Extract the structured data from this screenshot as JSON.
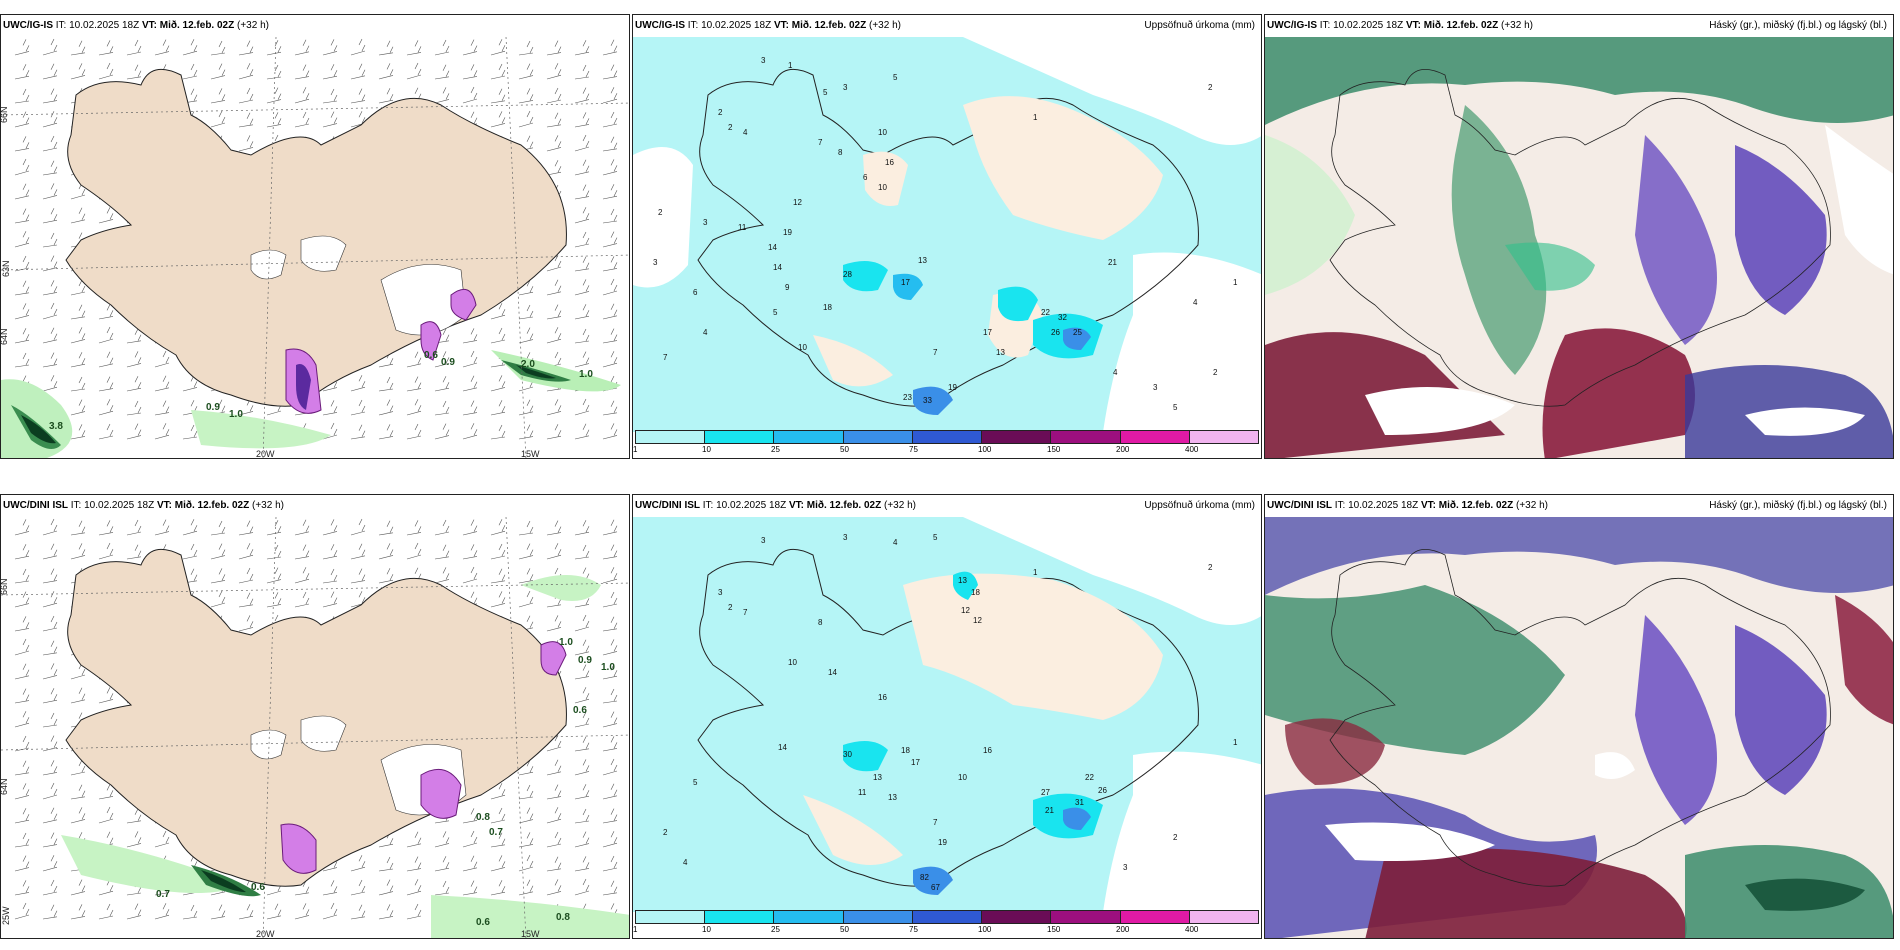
{
  "panels": [
    {
      "id": "p1",
      "model": "UWC/IG-IS",
      "it_label": "IT:",
      "it_value": "10.02.2025 18Z",
      "vt_label": "VT:",
      "vt_value": "Mið. 12.feb. 02Z",
      "lead": "(+32 h)",
      "right_title": "",
      "type": "wind"
    },
    {
      "id": "p2",
      "model": "UWC/IG-IS",
      "it_label": "IT:",
      "it_value": "10.02.2025 18Z",
      "vt_label": "VT:",
      "vt_value": "Mið. 12.feb. 02Z",
      "lead": "(+32 h)",
      "right_title": "Uppsöfnuð úrkoma (mm)",
      "type": "precip"
    },
    {
      "id": "p3",
      "model": "UWC/IG-IS",
      "it_label": "IT:",
      "it_value": "10.02.2025 18Z",
      "vt_label": "VT:",
      "vt_value": "Mið. 12.feb. 02Z",
      "lead": "(+32 h)",
      "right_title": "Háský (gr.), miðský (fj.bl.) og lágský (bl.)",
      "type": "cloud"
    },
    {
      "id": "p4",
      "model": "UWC/DINI ISL",
      "it_label": "IT:",
      "it_value": "10.02.2025 18Z",
      "vt_label": "VT:",
      "vt_value": "Mið. 12.feb. 02Z",
      "lead": "(+32 h)",
      "right_title": "",
      "type": "wind"
    },
    {
      "id": "p5",
      "model": "UWC/DINI ISL",
      "it_label": "IT:",
      "it_value": "10.02.2025 18Z",
      "vt_label": "VT:",
      "vt_value": "Mið. 12.feb. 02Z",
      "lead": "(+32 h)",
      "right_title": "Uppsöfnuð úrkoma (mm)",
      "type": "precip"
    },
    {
      "id": "p6",
      "model": "UWC/DINI ISL",
      "it_label": "IT:",
      "it_value": "10.02.2025 18Z",
      "vt_label": "VT:",
      "vt_value": "Mið. 12.feb. 02Z",
      "lead": "(+32 h)",
      "right_title": "Háský (gr.), miðský (fj.bl.) og lágský (bl.)",
      "type": "cloud"
    }
  ],
  "colorbar": {
    "ticks": [
      "1",
      "10",
      "25",
      "50",
      "75",
      "100",
      "150",
      "200",
      "400"
    ],
    "colors": [
      "#b5f5f6",
      "#19e4ef",
      "#25bdf0",
      "#3a8fe8",
      "#2f59d2",
      "#6a0c56",
      "#9c0f7e",
      "#e01aa5",
      "#f1b4ef"
    ]
  },
  "wind_labels": {
    "p1": {
      "lat_a": "66N",
      "lat_b": "64N",
      "lat_c": "63N",
      "lon_a": "20W",
      "lon_b": "15W",
      "vals": [
        "0.6",
        "0.9",
        "2.0",
        "1.0",
        "0.9",
        "1.0",
        "3.8"
      ]
    },
    "p4": {
      "lat_a": "66N",
      "lat_b": "64N",
      "lat_c": "25W",
      "lon_a": "20W",
      "lon_b": "15W",
      "vals": [
        "1.0",
        "0.9",
        "1.0",
        "0.6",
        "0.8",
        "0.7",
        "0.6",
        "0.7",
        "0.6",
        "0.8"
      ]
    }
  },
  "precip_labels": {
    "p2": [
      "3",
      "1",
      "3",
      "5",
      "2",
      "1",
      "2",
      "2",
      "4",
      "7",
      "8",
      "10",
      "16",
      "6",
      "10",
      "5",
      "2",
      "3",
      "11",
      "19",
      "14",
      "12",
      "28",
      "17",
      "13",
      "22",
      "32",
      "26",
      "21",
      "14",
      "9",
      "5",
      "4",
      "7",
      "10",
      "18",
      "17",
      "13",
      "33",
      "23",
      "19",
      "25",
      "7",
      "4",
      "3",
      "5",
      "4",
      "6",
      "3",
      "2",
      "1"
    ],
    "p5": [
      "3",
      "3",
      "4",
      "5",
      "2",
      "1",
      "3",
      "2",
      "7",
      "8",
      "13",
      "18",
      "12",
      "12",
      "10",
      "14",
      "16",
      "30",
      "18",
      "17",
      "16",
      "27",
      "21",
      "31",
      "22",
      "26",
      "14",
      "13",
      "11",
      "13",
      "10",
      "7",
      "19",
      "82",
      "67",
      "2",
      "4",
      "5",
      "3",
      "2",
      "1"
    ]
  }
}
